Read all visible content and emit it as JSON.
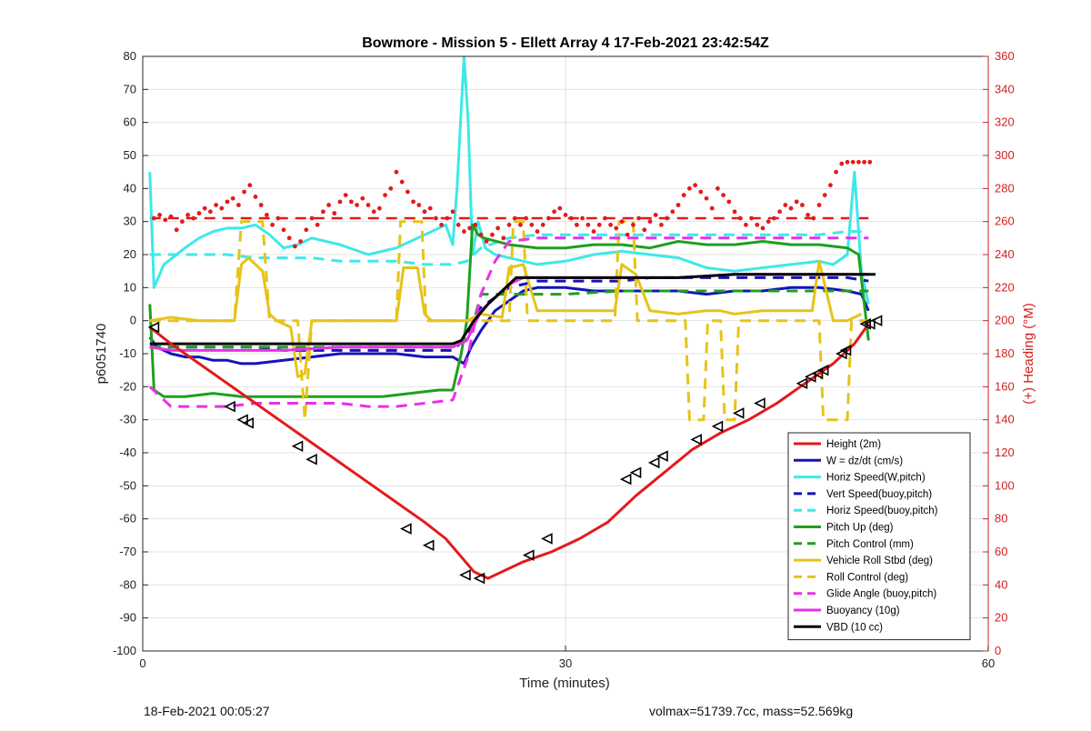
{
  "chart_data": {
    "type": "line",
    "title": "Bowmore - Mission 5 - Ellett Array 4 17-Feb-2021 23:42:54Z",
    "xlabel": "Time (minutes)",
    "ylabel": "p6051740",
    "y2label": "(+) Heading (°M)",
    "xlim": [
      0,
      60
    ],
    "ylim": [
      -100,
      80
    ],
    "y2lim": [
      0,
      360
    ],
    "xticks": [
      0,
      30,
      60
    ],
    "yticks": [
      80,
      70,
      60,
      50,
      40,
      30,
      20,
      10,
      0,
      -10,
      -20,
      -30,
      -40,
      -50,
      -60,
      -70,
      -80,
      -90,
      -100
    ],
    "y2ticks": [
      360,
      340,
      320,
      300,
      280,
      260,
      240,
      220,
      200,
      180,
      160,
      140,
      120,
      100,
      80,
      60,
      40,
      20,
      0
    ],
    "grid": true,
    "legend_position": "lower-right",
    "colors": {
      "height": "#e31a1c",
      "w": "#1414b8",
      "horiz": "#3ee8e8",
      "pitch": "#1ea01e",
      "roll": "#e6c31a",
      "glide": "#e632e6",
      "vbd": "#000000",
      "heading": "#e31a1c",
      "right_axis": "#d21f1f"
    },
    "series": [
      {
        "name": "Height (2m)",
        "style": "solid",
        "color": "#e31a1c",
        "x": [
          0.5,
          2,
          4,
          6,
          8,
          10,
          12,
          14,
          16,
          18,
          20,
          21.5,
          22.5,
          23.5,
          24.5,
          25.5,
          27,
          29,
          31,
          33,
          35,
          37,
          39,
          41,
          43,
          45,
          47,
          49,
          50.5,
          51.5
        ],
        "y": [
          -2,
          -7,
          -13,
          -19,
          -25,
          -31,
          -37,
          -43,
          -49,
          -55,
          -61,
          -66,
          -71,
          -76,
          -78,
          -76,
          -73,
          -70,
          -66,
          -61,
          -53,
          -46,
          -39,
          -34,
          -30,
          -25,
          -19,
          -13,
          -7,
          -1
        ]
      },
      {
        "name": "W = dz/dt (cm/s)",
        "style": "solid",
        "color": "#1414b8",
        "x": [
          0.5,
          1,
          2,
          3,
          4,
          5,
          6,
          7,
          8,
          10,
          12,
          14,
          16,
          18,
          20,
          22,
          22.8,
          23.3,
          24,
          25,
          26,
          27,
          28,
          30,
          32,
          34,
          36,
          38,
          40,
          42,
          44,
          46,
          48,
          50,
          51,
          51.5
        ],
        "y": [
          -5,
          -8,
          -10,
          -11,
          -11,
          -12,
          -12,
          -13,
          -13,
          -12,
          -11,
          -10,
          -10,
          -10,
          -11,
          -11,
          -13,
          -8,
          -3,
          3,
          6,
          9,
          10,
          10,
          9,
          9,
          9,
          9,
          8,
          9,
          9,
          10,
          10,
          9,
          8,
          3
        ]
      },
      {
        "name": "Horiz Speed(W,pitch)",
        "style": "solid",
        "color": "#3ee8e8",
        "x": [
          0.5,
          0.8,
          1.5,
          3,
          4,
          5,
          6,
          7,
          8,
          9,
          10,
          11,
          12,
          13,
          14,
          16,
          18,
          19.5,
          20.5,
          21.5,
          22,
          22.3,
          22.8,
          23.1,
          23.4,
          23.8,
          24.3,
          25,
          26,
          28,
          30,
          32,
          34,
          36,
          38,
          40,
          42,
          44,
          46,
          48,
          49,
          50,
          50.5,
          51,
          51.5
        ],
        "y": [
          45,
          10,
          17,
          22,
          25,
          27,
          28,
          28,
          29,
          26,
          22,
          23,
          25,
          24,
          23,
          20,
          22,
          25,
          27,
          29,
          23,
          40,
          80,
          60,
          20,
          30,
          22,
          20,
          19,
          17,
          18,
          20,
          21,
          20,
          19,
          16,
          15,
          16,
          17,
          18,
          17,
          20,
          45,
          15,
          5
        ]
      },
      {
        "name": "Vert Speed(buoy,pitch)",
        "style": "dashed",
        "color": "#1414b8",
        "x": [
          0.5,
          2,
          4,
          6,
          8,
          10,
          12,
          14,
          16,
          18,
          20,
          22,
          23,
          24,
          26,
          28,
          30,
          32,
          34,
          36,
          38,
          40,
          42,
          44,
          46,
          48,
          50,
          51.5
        ],
        "y": [
          -8,
          -8,
          -8,
          -8,
          -8,
          -9,
          -9,
          -9,
          -9,
          -9,
          -9,
          -9,
          -5,
          4,
          10,
          12,
          12,
          12,
          12,
          13,
          13,
          13,
          13,
          13,
          13,
          13,
          13,
          12
        ]
      },
      {
        "name": "Horiz Speed(buoy,pitch)",
        "style": "dashed",
        "color": "#3ee8e8",
        "x": [
          0.5,
          2,
          4,
          6,
          8,
          10,
          12,
          14,
          16,
          18,
          20,
          22,
          23,
          24,
          26,
          28,
          30,
          32,
          34,
          36,
          38,
          40,
          42,
          44,
          46,
          48,
          50,
          51.5
        ],
        "y": [
          20,
          20,
          20,
          20,
          19,
          19,
          19,
          18,
          18,
          18,
          17,
          17,
          18,
          22,
          25,
          26,
          26,
          26,
          26,
          26,
          26,
          26,
          26,
          26,
          26,
          26,
          27,
          27
        ]
      },
      {
        "name": "Pitch Up (deg)",
        "style": "solid",
        "color": "#1ea01e",
        "x": [
          0.5,
          0.8,
          1.5,
          3,
          5,
          7,
          9,
          11,
          13,
          15,
          17,
          19,
          21,
          22,
          22.6,
          23,
          23.4,
          23.8,
          24.2,
          26,
          28,
          30,
          32,
          34,
          36,
          38,
          40,
          42,
          44,
          46,
          48,
          50,
          50.8,
          51.5
        ],
        "y": [
          5,
          -21,
          -23,
          -23,
          -22,
          -23,
          -23,
          -23,
          -23,
          -23,
          -23,
          -22,
          -21,
          -21,
          -10,
          0,
          29,
          26,
          25,
          23,
          22,
          22,
          23,
          23,
          22,
          24,
          23,
          23,
          24,
          23,
          23,
          22,
          20,
          -6
        ]
      },
      {
        "name": "Pitch Control (mm)",
        "style": "dashed",
        "color": "#1ea01e",
        "x": [
          0.5,
          2,
          6,
          10,
          14,
          18,
          22,
          23.2,
          24,
          26,
          30,
          34,
          38,
          42,
          46,
          50,
          51.5
        ],
        "y": [
          -8,
          -8,
          -8,
          -8,
          -8,
          -8,
          -8,
          -5,
          8,
          8,
          8,
          9,
          9,
          9,
          9,
          9,
          9
        ]
      },
      {
        "name": "Vehicle Roll Stbd (deg)",
        "style": "solid",
        "color": "#e6c31a",
        "x": [
          0.5,
          2,
          4,
          6.5,
          7,
          7.5,
          8.5,
          9,
          9.5,
          10.5,
          11,
          11.5,
          12,
          12.5,
          13,
          15,
          17,
          18,
          18.5,
          19.5,
          20,
          20.5,
          22,
          23,
          24,
          25.5,
          26,
          27,
          28,
          30,
          32,
          33.5,
          34,
          35,
          36,
          38,
          40,
          41,
          42,
          44,
          46,
          47.5,
          48,
          49,
          50,
          51
        ],
        "y": [
          0,
          1,
          0,
          0,
          17,
          19,
          15,
          2,
          0,
          -2,
          -17,
          -16,
          0,
          0,
          0,
          0,
          0,
          0,
          16,
          16,
          2,
          0,
          0,
          0,
          2,
          1,
          16,
          17,
          3,
          3,
          3,
          3,
          17,
          14,
          3,
          2,
          3,
          3,
          2,
          3,
          3,
          3,
          18,
          0,
          0,
          2
        ]
      },
      {
        "name": "Roll Control (deg)",
        "style": "dashed",
        "color": "#e6c31a",
        "x": [
          0.5,
          6.5,
          7,
          8.5,
          9,
          11,
          11.5,
          12,
          18,
          18.3,
          19.8,
          20.1,
          23,
          26,
          26.3,
          27,
          27.3,
          33.5,
          33.8,
          34.8,
          35.1,
          38.5,
          38.8,
          39.8,
          40.1,
          41,
          41.3,
          42,
          42.3,
          48,
          48.3,
          50,
          50.3,
          51.5
        ],
        "y": [
          0,
          0,
          30,
          30,
          0,
          0,
          -30,
          0,
          0,
          30,
          30,
          0,
          0,
          0,
          30,
          30,
          0,
          0,
          30,
          30,
          0,
          0,
          -30,
          -30,
          0,
          0,
          -30,
          -30,
          0,
          0,
          -30,
          -30,
          0,
          0
        ]
      },
      {
        "name": "Glide Angle (buoy,pitch)",
        "style": "dashed",
        "color": "#e632e6",
        "x": [
          0.5,
          2,
          4,
          6,
          8,
          10,
          12,
          14,
          16,
          18,
          20,
          22,
          23,
          24,
          25,
          26,
          28,
          30,
          32,
          34,
          36,
          38,
          40,
          42,
          44,
          46,
          48,
          50,
          51.5
        ],
        "y": [
          -20,
          -26,
          -26,
          -26,
          -25,
          -25,
          -25,
          -25,
          -26,
          -26,
          -25,
          -24,
          -12,
          8,
          18,
          24,
          25,
          25,
          25,
          25,
          25,
          25,
          25,
          25,
          25,
          25,
          25,
          25,
          25
        ]
      },
      {
        "name": "Buoyancy (10g)",
        "style": "solid",
        "color": "#e632e6",
        "x": [
          0.5,
          2,
          6,
          10,
          14,
          18,
          22,
          23,
          24,
          26,
          27,
          30,
          34,
          38,
          42,
          46,
          50,
          51.5
        ],
        "y": [
          -8,
          -9,
          -9,
          -9,
          -8,
          -8,
          -8,
          -6,
          3,
          11,
          13,
          13,
          13,
          13,
          14,
          14,
          14,
          14
        ]
      },
      {
        "name": "VBD (10 cc)",
        "style": "solid",
        "color": "#000000",
        "x": [
          0.5,
          2,
          6,
          10,
          14,
          18,
          22,
          22.6,
          23.5,
          24.5,
          25.5,
          26.5,
          27,
          30,
          34,
          38,
          42,
          46,
          50,
          52
        ],
        "y": [
          -7,
          -7,
          -7,
          -7,
          -7,
          -7,
          -7,
          -6,
          0,
          5,
          9,
          13,
          13,
          13,
          13,
          13,
          14,
          14,
          14,
          14
        ]
      }
    ],
    "heading_points": {
      "name": "Heading (dotted)",
      "axis": "right",
      "x": [
        0.8,
        1.2,
        1.6,
        2.0,
        2.4,
        2.8,
        3.2,
        3.6,
        4.0,
        4.4,
        4.8,
        5.2,
        5.6,
        6.0,
        6.4,
        6.8,
        7.2,
        7.6,
        8.0,
        8.4,
        8.8,
        9.2,
        9.6,
        10.0,
        10.4,
        10.8,
        11.2,
        11.6,
        12.0,
        12.4,
        12.8,
        13.2,
        13.6,
        14.0,
        14.4,
        14.8,
        15.2,
        15.6,
        16.0,
        16.4,
        16.8,
        17.2,
        17.6,
        18.0,
        18.4,
        18.8,
        19.2,
        19.6,
        20.0,
        20.4,
        20.8,
        21.2,
        21.6,
        22.0,
        22.4,
        22.8,
        23.2,
        23.6,
        24.0,
        24.4,
        24.8,
        25.2,
        25.6,
        26.0,
        26.4,
        26.8,
        27.2,
        27.6,
        28.0,
        28.4,
        28.8,
        29.2,
        29.6,
        30.0,
        30.4,
        30.8,
        31.2,
        31.6,
        32.0,
        32.4,
        32.8,
        33.2,
        33.6,
        34.0,
        34.4,
        34.8,
        35.2,
        35.6,
        36.0,
        36.4,
        36.8,
        37.2,
        37.6,
        38.0,
        38.4,
        38.8,
        39.2,
        39.6,
        40.0,
        40.4,
        40.8,
        41.2,
        41.6,
        42.0,
        42.4,
        42.8,
        43.2,
        43.6,
        44.0,
        44.4,
        44.8,
        45.2,
        45.6,
        46.0,
        46.4,
        46.8,
        47.2,
        47.6,
        48.0,
        48.4,
        48.8,
        49.2,
        49.6,
        50.0,
        50.4,
        50.8,
        51.2,
        51.6
      ],
      "y": [
        262,
        264,
        261,
        263,
        255,
        260,
        264,
        262,
        265,
        268,
        266,
        270,
        268,
        272,
        274,
        270,
        278,
        282,
        275,
        270,
        264,
        258,
        262,
        255,
        250,
        245,
        248,
        255,
        262,
        258,
        266,
        270,
        265,
        272,
        276,
        272,
        270,
        274,
        270,
        266,
        268,
        276,
        280,
        290,
        284,
        278,
        272,
        270,
        266,
        268,
        262,
        258,
        262,
        266,
        258,
        254,
        256,
        258,
        252,
        248,
        252,
        256,
        250,
        258,
        262,
        258,
        262,
        258,
        254,
        258,
        262,
        266,
        268,
        264,
        262,
        258,
        262,
        258,
        254,
        258,
        262,
        258,
        256,
        260,
        252,
        258,
        262,
        255,
        260,
        264,
        258,
        262,
        266,
        270,
        276,
        280,
        282,
        278,
        274,
        268,
        280,
        276,
        272,
        266,
        262,
        258,
        262,
        258,
        256,
        260,
        262,
        266,
        270,
        268,
        272,
        270,
        264,
        262,
        270,
        276,
        282,
        290,
        295,
        296,
        296,
        296,
        296,
        296
      ]
    },
    "heading_target": {
      "name": "Heading target (dashed)",
      "axis": "right",
      "value": 262,
      "color": "#e31a1c"
    },
    "height_markers": {
      "x": [
        0.8,
        6.2,
        7.1,
        7.5,
        11,
        12,
        18.7,
        20.3,
        22.9,
        23.9,
        27.4,
        28.7,
        34.3,
        35.0,
        36.3,
        36.9,
        39.3,
        40.8,
        42.3,
        43.8,
        46.8,
        47.4,
        47.9,
        48.3,
        49.6,
        49.9,
        51.3,
        51.6,
        52.1
      ],
      "y": [
        -2,
        -26,
        -30,
        -31,
        -38,
        -42,
        -63,
        -68,
        -77,
        -78,
        -71,
        -66,
        -48,
        -46,
        -43,
        -41,
        -36,
        -32,
        -28,
        -25,
        -19,
        -17,
        -16,
        -15,
        -10,
        -9,
        -1,
        -1,
        0
      ]
    }
  },
  "footer": {
    "left": "18-Feb-2021 00:05:27",
    "right": "volmax=51739.7cc, mass=52.569kg"
  }
}
